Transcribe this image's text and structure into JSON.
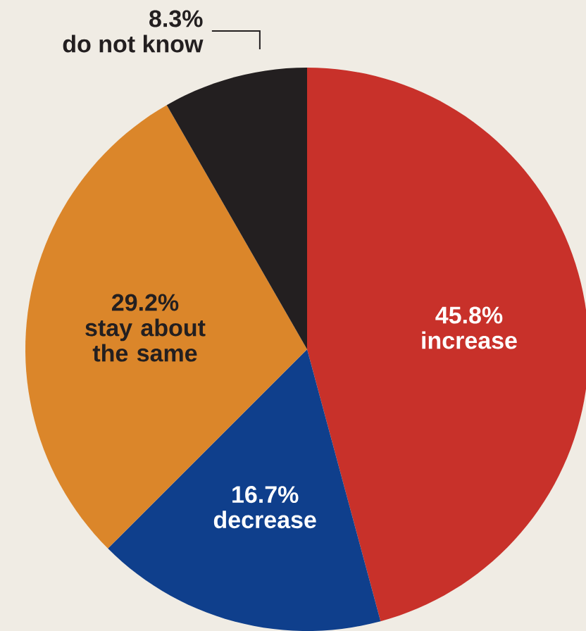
{
  "chart_data": {
    "type": "pie",
    "categories": [
      "increase",
      "decrease",
      "stay about the same",
      "do not know"
    ],
    "values": [
      45.8,
      16.7,
      29.2,
      8.3
    ],
    "value_labels": [
      "45.8%",
      "16.7%",
      "29.2%",
      "8.3%"
    ],
    "colors": [
      "#c8312a",
      "#0f3f8c",
      "#db862a",
      "#231f20"
    ]
  }
}
